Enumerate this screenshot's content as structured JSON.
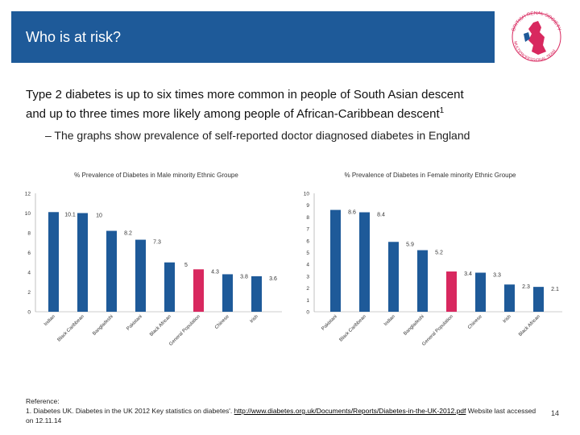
{
  "header": {
    "title": "Who is at risk?"
  },
  "logo": {
    "text_top": "BRITISH RENAL SOCIETY",
    "text_bottom": "MULTIPROFESSIONAL TEAM"
  },
  "main_text": {
    "line1": "Type 2 diabetes is up to six times more common in people of South Asian descent",
    "line2": "and up to three times more likely among people of African-Caribbean descent",
    "superscript": "1"
  },
  "sub_text": "– The graphs show prevalence of self-reported doctor diagnosed diabetes in England",
  "chart_data": [
    {
      "type": "bar",
      "title": "% Prevalence of Diabetes in Male minority Ethnic Groupe",
      "categories": [
        "Indian",
        "Black Caribbean",
        "Bangladeshi",
        "Pakistani",
        "Black African",
        "General Population",
        "Chinese",
        "Irish"
      ],
      "values": [
        10.1,
        10,
        8.2,
        7.3,
        5,
        4.3,
        3.8,
        3.6
      ],
      "value_labels": [
        "10.1",
        "10",
        "8.2",
        "7.3",
        "5",
        "4.3",
        "3.8",
        "3.6"
      ],
      "ylim": [
        0,
        12
      ],
      "yticks": [
        0,
        2,
        4,
        6,
        8,
        10,
        12
      ],
      "highlight_category": "General Population",
      "bar_color": "#1e5a99",
      "highlight_color": "#d8285f"
    },
    {
      "type": "bar",
      "title": "% Prevalence of Diabetes in Female minority Ethnic Groupe",
      "categories": [
        "Pakistani",
        "Black Caribbean",
        "Indian",
        "Bangladeshi",
        "General Population",
        "Chinese",
        "Irish",
        "Black African"
      ],
      "values": [
        8.6,
        8.4,
        5.9,
        5.2,
        3.4,
        3.3,
        2.3,
        2.1
      ],
      "value_labels": [
        "8.6",
        "8.4",
        "5.9",
        "5.2",
        "3.4",
        "3.3",
        "2.3",
        "2.1"
      ],
      "ylim": [
        0,
        10
      ],
      "yticks": [
        0,
        1,
        2,
        3,
        4,
        5,
        6,
        7,
        8,
        9,
        10
      ],
      "highlight_category": "General Population",
      "bar_color": "#1e5a99",
      "highlight_color": "#d8285f"
    }
  ],
  "reference": {
    "label": "Reference:",
    "text": "1. Diabetes UK. Diabetes in the UK 2012 Key statistics on diabetes'. ",
    "link": "http://www.diabetes.org.uk/Documents/Reports/Diabetes-in-the-UK-2012.pdf",
    "suffix": " Website last accessed on 12.11.14"
  },
  "page_number": "14"
}
